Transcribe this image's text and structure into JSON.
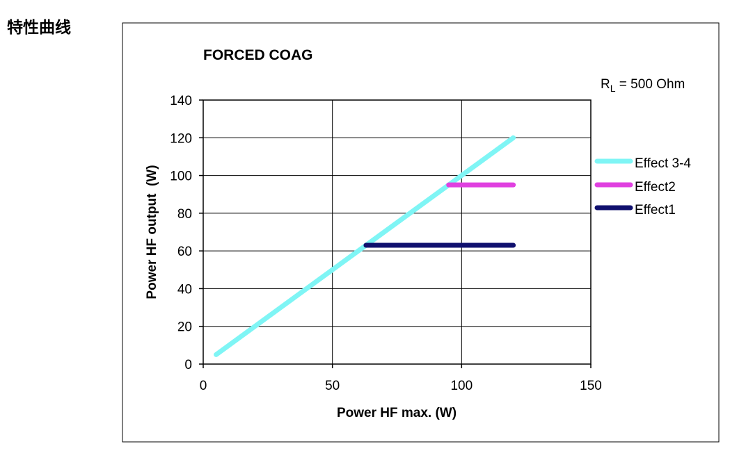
{
  "page": {
    "heading": "特性曲线"
  },
  "chart_data": {
    "type": "line",
    "title": "FORCED COAG",
    "annotation": {
      "prefix": "R",
      "subscript": "L",
      "suffix": " = 500 Ohm"
    },
    "xlabel": "Power HF max. (W)",
    "ylabel": "Power HF output  (W)",
    "xlim": [
      0,
      150
    ],
    "ylim": [
      0,
      140
    ],
    "xticks": [
      0,
      50,
      100,
      150
    ],
    "yticks": [
      0,
      20,
      40,
      60,
      80,
      100,
      120,
      140
    ],
    "grid": true,
    "legend": "right",
    "series": [
      {
        "name": "Effect 3-4",
        "color": "#7ff5f5",
        "x": [
          5,
          120
        ],
        "y": [
          5,
          120
        ]
      },
      {
        "name": "Effect2",
        "color": "#e040e0",
        "x": [
          95,
          120
        ],
        "y": [
          95,
          95
        ]
      },
      {
        "name": "Effect1",
        "color": "#10106e",
        "x": [
          63,
          120
        ],
        "y": [
          63,
          63
        ]
      }
    ]
  }
}
